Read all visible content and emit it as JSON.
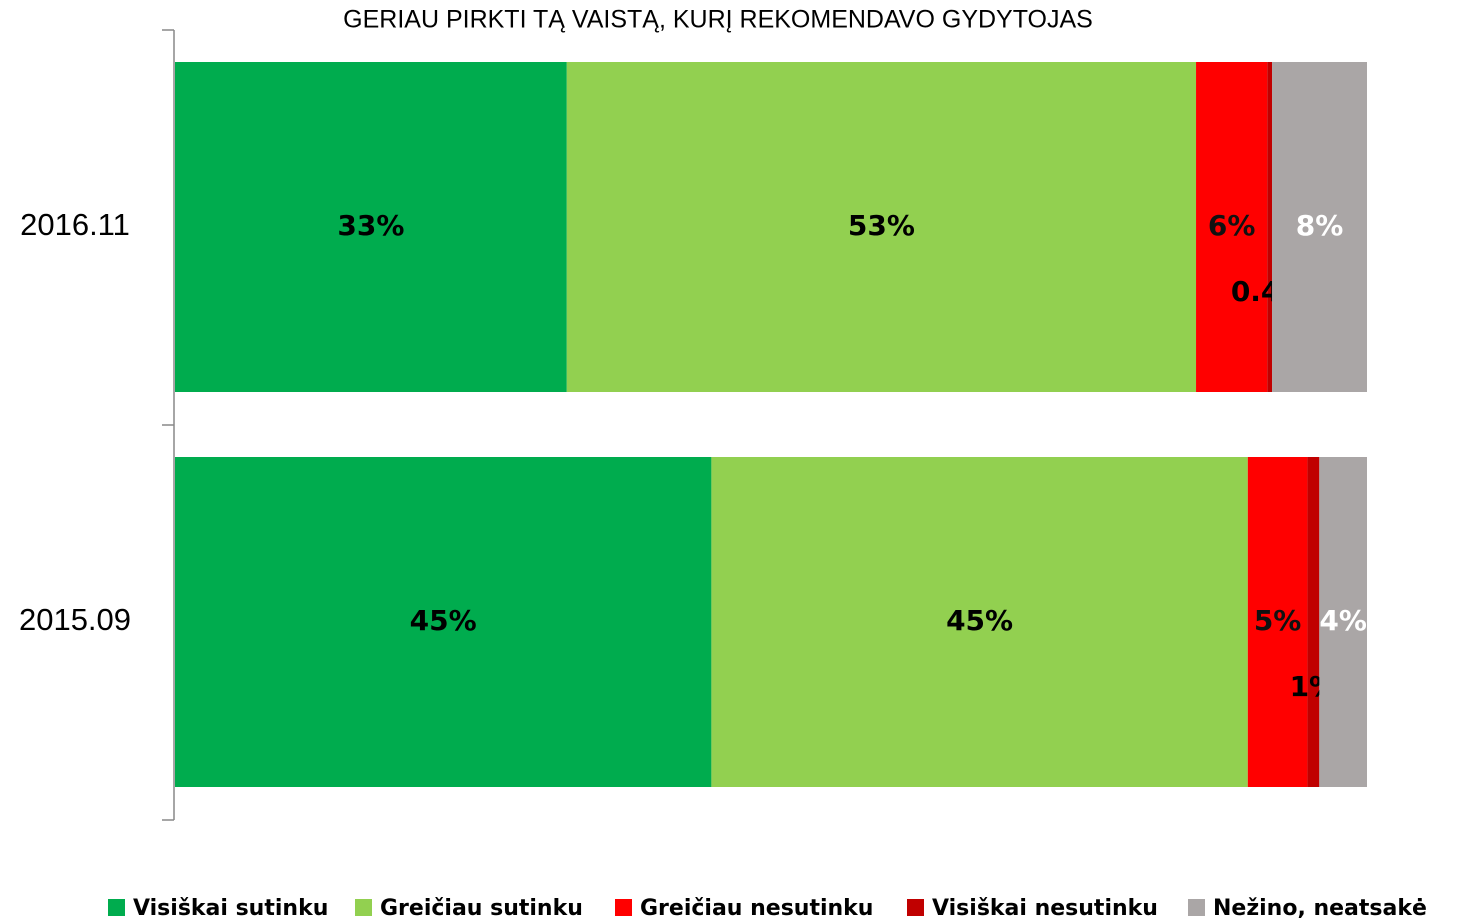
{
  "chart_data": {
    "type": "stacked_percent_bar",
    "title": "GERIAU PIRKTI TĄ VAISTĄ, KURĮ REKOMENDAVO GYDYTOJAS",
    "categories": [
      "2016.11",
      "2015.09"
    ],
    "series": [
      {
        "name": "Visiškai sutinku",
        "color": "#00ac4e",
        "values": [
          33,
          45
        ],
        "value_labels": [
          "33%",
          "45%"
        ]
      },
      {
        "name": "Greičiau sutinku",
        "color": "#92d050",
        "values": [
          53,
          45
        ],
        "value_labels": [
          "53%",
          "45%"
        ]
      },
      {
        "name": "Greičiau nesutinku",
        "color": "#ff0000",
        "values": [
          6,
          5
        ],
        "value_labels": [
          "6%",
          "5%"
        ]
      },
      {
        "name": "Visiškai nesutinku",
        "color": "#c00000",
        "values": [
          0.4,
          1
        ],
        "value_labels": [
          "0.4%",
          "1%"
        ]
      },
      {
        "name": "Nežino, neatsakė",
        "color": "#aaa6a6",
        "values": [
          8,
          4
        ],
        "value_labels": [
          "8%",
          "4%"
        ]
      }
    ],
    "legend": "bottom"
  }
}
